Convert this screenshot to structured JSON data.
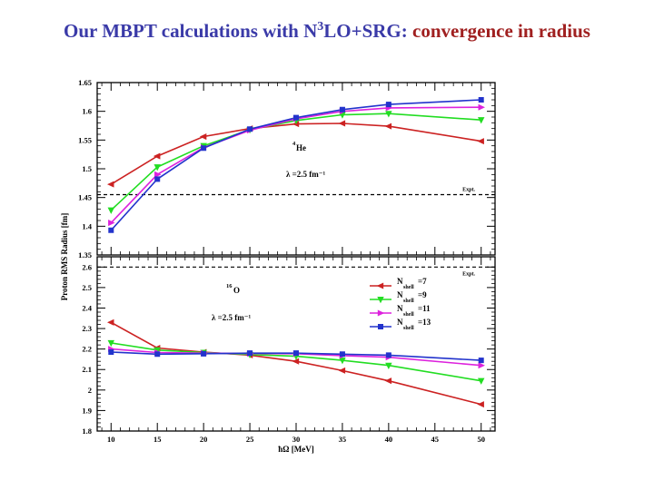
{
  "slide": {
    "title_part1": "Our MBPT calculations with N",
    "title_sup": "3",
    "title_part2": "LO+SRG: ",
    "title_accent": "convergence in radius",
    "accent_color": "#a02020",
    "title_color": "#3a3aa8"
  },
  "chart_data": [
    {
      "type": "line",
      "panel": "top",
      "nucleus_label": "4He",
      "nucleus_mass": "4",
      "nucleus_symbol": "He",
      "lambda_label": "λ =2.5 fm⁻¹",
      "expt_label": "Expt.",
      "expt_value": 1.455,
      "x": [
        10,
        15,
        20,
        25,
        30,
        35,
        40,
        50
      ],
      "ylim": [
        1.35,
        1.65
      ],
      "yticks": [
        "1.35",
        "1.4",
        "1.45",
        "1.5",
        "1.55",
        "1.6",
        "1.65"
      ],
      "series": [
        {
          "name": "Nshell=7",
          "color": "#cc2222",
          "marker": "triangle-left",
          "values": [
            1.473,
            1.522,
            1.556,
            1.57,
            1.578,
            1.579,
            1.574,
            1.548
          ]
        },
        {
          "name": "Nshell=9",
          "color": "#22dd22",
          "marker": "triangle-down",
          "values": [
            1.428,
            1.503,
            1.54,
            1.568,
            1.584,
            1.594,
            1.596,
            1.585
          ]
        },
        {
          "name": "Nshell=11",
          "color": "#dd22dd",
          "marker": "triangle-right",
          "values": [
            1.406,
            1.49,
            1.537,
            1.567,
            1.587,
            1.6,
            1.606,
            1.607
          ]
        },
        {
          "name": "Nshell=13",
          "color": "#2233cc",
          "marker": "square",
          "values": [
            1.393,
            1.482,
            1.536,
            1.569,
            1.589,
            1.603,
            1.612,
            1.62
          ]
        }
      ]
    },
    {
      "type": "line",
      "panel": "bottom",
      "nucleus_label": "16O",
      "nucleus_mass": "16",
      "nucleus_symbol": "O",
      "lambda_label": "λ =2.5 fm⁻¹",
      "expt_label": "Expt.",
      "expt_value": 2.6,
      "x": [
        10,
        15,
        20,
        25,
        30,
        35,
        40,
        50
      ],
      "xticks": [
        "10",
        "15",
        "20",
        "25",
        "30",
        "35",
        "40",
        "45",
        "50"
      ],
      "xlabel": "ħΩ [MeV]",
      "ylim": [
        1.8,
        2.65
      ],
      "yticks": [
        "1.8",
        "1.9",
        "2",
        "2.1",
        "2.2",
        "2.3",
        "2.4",
        "2.5",
        "2.6"
      ],
      "series": [
        {
          "name": "Nshell=7",
          "color": "#cc2222",
          "marker": "triangle-left",
          "values": [
            2.33,
            2.205,
            2.185,
            2.17,
            2.14,
            2.095,
            2.045,
            1.93
          ]
        },
        {
          "name": "Nshell=9",
          "color": "#22dd22",
          "marker": "triangle-down",
          "values": [
            2.23,
            2.195,
            2.183,
            2.173,
            2.165,
            2.145,
            2.12,
            2.045
          ]
        },
        {
          "name": "Nshell=11",
          "color": "#dd22dd",
          "marker": "triangle-right",
          "values": [
            2.2,
            2.183,
            2.18,
            2.178,
            2.177,
            2.168,
            2.16,
            2.12
          ]
        },
        {
          "name": "Nshell=13",
          "color": "#2233cc",
          "marker": "square",
          "values": [
            2.185,
            2.175,
            2.177,
            2.18,
            2.18,
            2.175,
            2.17,
            2.145
          ]
        }
      ],
      "legend": [
        {
          "prefix": "N",
          "sub": "shell",
          "suffix": "=7"
        },
        {
          "prefix": "N",
          "sub": "shell",
          "suffix": "=9"
        },
        {
          "prefix": "N",
          "sub": "shell",
          "suffix": "=11"
        },
        {
          "prefix": "N",
          "sub": "shell",
          "suffix": "=13"
        }
      ]
    }
  ],
  "shared_ylabel": "Proton RMS Radius [fm]"
}
